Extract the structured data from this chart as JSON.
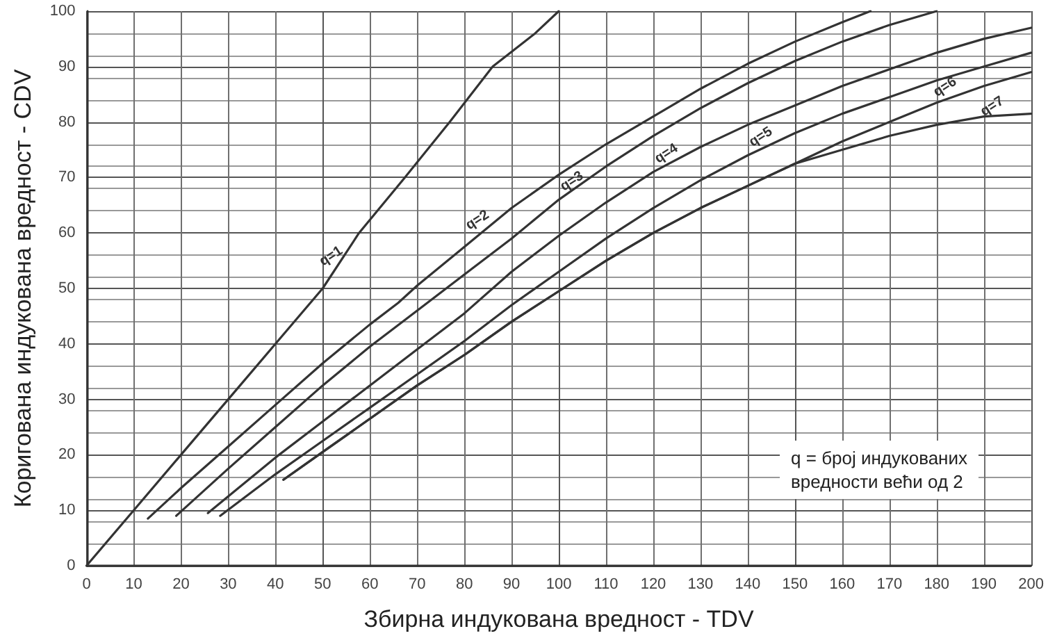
{
  "chart_data": {
    "type": "line",
    "xlabel": "Збирна индукована вредност - TDV",
    "ylabel": "Коригована индукована вредност - CDV",
    "xlim": [
      0,
      200
    ],
    "ylim": [
      0,
      100
    ],
    "xticks": [
      0,
      10,
      20,
      30,
      40,
      50,
      60,
      70,
      80,
      90,
      100,
      110,
      120,
      130,
      140,
      150,
      160,
      170,
      180,
      190,
      200
    ],
    "yticks": [
      0,
      10,
      20,
      30,
      40,
      50,
      60,
      70,
      80,
      90,
      100
    ],
    "grid": true,
    "marker": "none",
    "line_style": "solid",
    "series": [
      {
        "color": "#333333",
        "x": [
          0,
          10,
          20,
          30,
          40,
          50,
          57.7,
          67.4,
          76.9,
          86,
          95,
          100
        ],
        "values": [
          0,
          10,
          20,
          30,
          40,
          50,
          60,
          70,
          80,
          90,
          96,
          100
        ]
      },
      {
        "color": "#333333",
        "x": [
          13,
          20,
          30,
          40,
          50,
          60,
          66,
          70,
          80,
          90,
          100,
          110,
          120,
          130,
          140,
          150,
          160,
          166
        ],
        "values": [
          8.5,
          14,
          21.5,
          29,
          36.5,
          43.5,
          47.4,
          50.5,
          57.5,
          64.5,
          70.5,
          76,
          81,
          86,
          90.5,
          94.5,
          98,
          100
        ]
      },
      {
        "color": "#333333",
        "x": [
          19,
          30,
          40,
          50,
          60,
          70,
          80,
          90,
          100,
          110,
          120,
          130,
          140,
          150,
          160,
          170,
          180
        ],
        "values": [
          9,
          17.5,
          25,
          32.5,
          39.5,
          46,
          52.5,
          59,
          66,
          72,
          77.5,
          82.5,
          87,
          91,
          94.5,
          97.5,
          100
        ]
      },
      {
        "color": "#333333",
        "x": [
          25.7,
          30,
          40,
          50,
          60,
          70,
          80,
          90,
          100,
          110,
          120,
          130,
          140,
          150,
          160,
          170,
          180,
          190,
          200
        ],
        "values": [
          9.5,
          12.5,
          19.5,
          26,
          32.5,
          39,
          45.5,
          53,
          59.5,
          65.5,
          71,
          75.5,
          79.5,
          83,
          86.5,
          89.5,
          92.5,
          95,
          97
        ]
      },
      {
        "color": "#333333",
        "x": [
          28.3,
          40,
          50,
          60,
          70,
          80,
          90,
          100,
          110,
          120,
          130,
          140,
          150,
          160,
          170,
          180,
          190,
          200
        ],
        "values": [
          9,
          16.5,
          22.5,
          28.5,
          34.5,
          40.5,
          47,
          53,
          59,
          64.5,
          69.5,
          74,
          78,
          81.5,
          84.5,
          87.5,
          90,
          92.5
        ]
      },
      {
        "color": "#333333",
        "x": [
          41.7,
          50,
          60,
          70,
          80,
          90,
          100,
          110,
          120,
          130,
          140,
          150,
          160,
          170,
          180,
          190,
          200
        ],
        "values": [
          15.5,
          20.5,
          26.5,
          32.5,
          38,
          44,
          49.5,
          55,
          60,
          64.5,
          68.5,
          72.5,
          76.5,
          80,
          83.5,
          86.5,
          89
        ]
      },
      {
        "color": "#333333",
        "x": [
          41.7,
          50,
          60,
          70,
          80,
          90,
          100,
          110,
          120,
          130,
          140,
          150,
          160,
          170,
          180,
          190,
          200
        ],
        "values": [
          15.5,
          20.5,
          26.5,
          32.5,
          38,
          44,
          49.5,
          55,
          60,
          64.5,
          68.5,
          72.5,
          75,
          77.5,
          79.5,
          81,
          81.5
        ]
      }
    ],
    "annotations": [
      {
        "text": "q=1",
        "x": 53,
        "y": 54
      },
      {
        "text": "q=2",
        "x": 84,
        "y": 60.5
      },
      {
        "text": "q=3",
        "x": 104,
        "y": 67.5
      },
      {
        "text": "q=4",
        "x": 124,
        "y": 72.5
      },
      {
        "text": "q=5",
        "x": 144,
        "y": 75.5
      },
      {
        "text": "q=6",
        "x": 183,
        "y": 84.5
      },
      {
        "text": "q=7",
        "x": 193,
        "y": 81
      },
      "q = број индукованих\nвредности већи од 2"
    ]
  }
}
